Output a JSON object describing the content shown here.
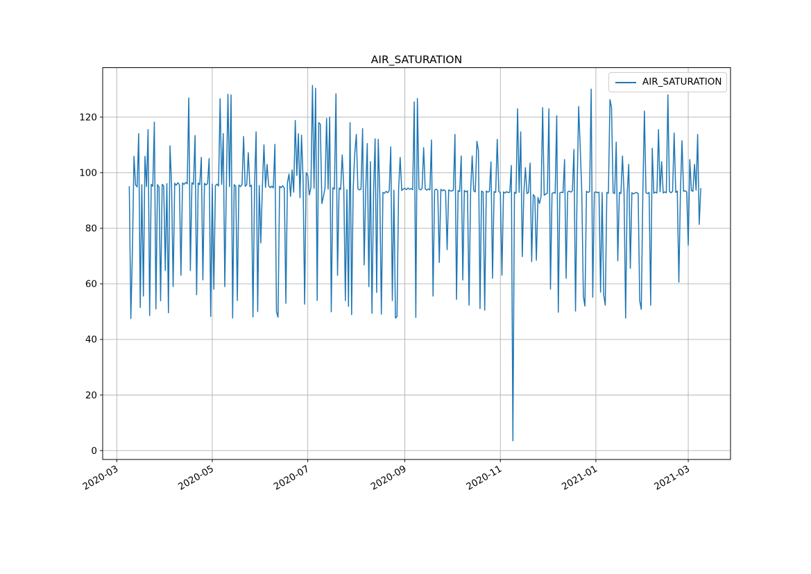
{
  "figure": {
    "title": "AIR_SATURATION"
  },
  "legend": {
    "label": "AIR_SATURATION",
    "position": "upper right"
  },
  "colors": {
    "line": "#1f77b4",
    "grid": "#b0b0b0",
    "spine": "#000000",
    "text": "#000000",
    "legend_border": "#cccccc",
    "background": "#ffffff"
  },
  "chart_data": {
    "type": "line",
    "title": "AIR_SATURATION",
    "xlabel": "",
    "ylabel": "",
    "grid": true,
    "legend_position": "upper right",
    "xlim": [
      "2020-02-21",
      "2021-03-28"
    ],
    "ylim": [
      -3.2,
      137.8
    ],
    "y_ticks": [
      0,
      20,
      40,
      60,
      80,
      100,
      120
    ],
    "x_ticks": [
      {
        "date": "2020-03-01",
        "label": "2020-03"
      },
      {
        "date": "2020-05-01",
        "label": "2020-05"
      },
      {
        "date": "2020-07-01",
        "label": "2020-07"
      },
      {
        "date": "2020-09-01",
        "label": "2020-09"
      },
      {
        "date": "2020-11-01",
        "label": "2020-11"
      },
      {
        "date": "2021-01-01",
        "label": "2021-01"
      },
      {
        "date": "2021-03-01",
        "label": "2021-03"
      }
    ],
    "series": [
      {
        "name": "AIR_SATURATION",
        "start_date": "2020-03-09",
        "end_date": "2021-03-09",
        "freq": "daily",
        "values": [
          95.0,
          47.5,
          72.0,
          105.9,
          95.6,
          94.9,
          114.1,
          51.5,
          95.7,
          55.6,
          105.9,
          95.0,
          115.5,
          48.6,
          95.8,
          95.1,
          118.2,
          51.0,
          95.7,
          94.9,
          53.9,
          95.8,
          95.2,
          64.8,
          96.1,
          49.6,
          109.7,
          95.6,
          59.0,
          96.2,
          95.5,
          96.4,
          95.7,
          63.1,
          96.3,
          95.8,
          96.5,
          96.0,
          126.9,
          64.8,
          96.4,
          95.8,
          113.4,
          56.1,
          96.3,
          95.7,
          105.5,
          61.4,
          96.2,
          95.6,
          96.1,
          105.1,
          48.3,
          95.9,
          58.1,
          95.3,
          95.9,
          95.2,
          126.6,
          95.8,
          114.1,
          59.0,
          95.3,
          128.2,
          95.0,
          128.0,
          47.7,
          95.7,
          95.1,
          54.0,
          95.6,
          95.0,
          95.7,
          113.0,
          95.1,
          95.6,
          107.2,
          95.0,
          95.5,
          48.1,
          95.1,
          114.7,
          50.0,
          95.4,
          74.7,
          94.9,
          110.0,
          94.7,
          103.0,
          95.3,
          94.6,
          95.2,
          94.5,
          110.2,
          50.0,
          48.0,
          95.1,
          94.6,
          95.3,
          94.5,
          53.0,
          96.5,
          99.5,
          91.5,
          101.0,
          93.0,
          118.8,
          99.0,
          114.0,
          91.0,
          113.5,
          97.5,
          52.7,
          100.0,
          99.0,
          92.0,
          94.6,
          131.4,
          94.4,
          130.4,
          54.0,
          118.0,
          117.5,
          88.9,
          91.5,
          94.5,
          119.5,
          94.1,
          120.0,
          49.9,
          94.6,
          94.1,
          128.4,
          63.1,
          94.5,
          94.0,
          106.4,
          94.4,
          54.0,
          93.9,
          51.9,
          118.0,
          48.9,
          94.4,
          107.0,
          113.8,
          94.2,
          93.8,
          94.1,
          115.9,
          66.8,
          93.9,
          110.5,
          59.0,
          104.0,
          49.4,
          92.8,
          112.2,
          56.9,
          112.0,
          92.5,
          49.1,
          92.9,
          92.6,
          93.3,
          92.8,
          93.5,
          109.3,
          54.0,
          93.7,
          47.7,
          48.2,
          93.9,
          105.5,
          93.6,
          94.1,
          94.4,
          93.9,
          94.5,
          94.0,
          94.3,
          93.9,
          125.5,
          47.9,
          126.7,
          94.2,
          93.8,
          94.3,
          109.0,
          94.1,
          93.7,
          94.2,
          93.8,
          111.8,
          55.6,
          93.7,
          94.1,
          93.6,
          67.7,
          94.0,
          93.5,
          93.9,
          93.4,
          72.3,
          93.8,
          93.5,
          93.4,
          93.7,
          113.8,
          54.4,
          93.6,
          93.2,
          106.0,
          61.4,
          93.6,
          93.1,
          93.5,
          52.3,
          93.2,
          106.0,
          93.5,
          93.1,
          111.3,
          108.0,
          51.1,
          93.4,
          93.0,
          50.5,
          93.4,
          93.0,
          93.3,
          103.9,
          62.0,
          93.2,
          92.9,
          112.0,
          93.2,
          92.8,
          63.1,
          93.1,
          92.7,
          93.2,
          92.8,
          93.0,
          102.6,
          3.5,
          93.0,
          92.6,
          123.0,
          92.9,
          114.7,
          69.8,
          92.7,
          101.8,
          92.5,
          92.9,
          103.5,
          68.0,
          92.1,
          91.4,
          68.5,
          91.1,
          88.9,
          91.5,
          123.4,
          91.9,
          92.3,
          92.6,
          123.0,
          58.1,
          92.5,
          92.9,
          92.6,
          120.5,
          49.8,
          92.7,
          93.0,
          92.8,
          104.7,
          62.0,
          93.1,
          93.4,
          93.0,
          93.5,
          108.4,
          50.2,
          93.2,
          123.8,
          109.0,
          93.1,
          55.6,
          52.0,
          93.3,
          92.9,
          93.2,
          130.1,
          55.2,
          92.9,
          93.1,
          92.8,
          93.0,
          57.0,
          92.9,
          56.0,
          52.3,
          92.9,
          92.6,
          126.3,
          123.4,
          92.8,
          92.5,
          111.0,
          68.3,
          92.9,
          92.5,
          106.0,
          92.8,
          47.7,
          92.6,
          103.0,
          65.6,
          92.8,
          92.4,
          92.7,
          92.9,
          92.5,
          54.0,
          50.8,
          92.7,
          122.2,
          92.8,
          92.5,
          92.9,
          52.3,
          108.8,
          92.6,
          93.0,
          92.7,
          115.5,
          93.1,
          104.0,
          92.7,
          93.1,
          92.8,
          128.0,
          93.2,
          92.8,
          93.3,
          114.3,
          92.9,
          93.4,
          60.6,
          93.0,
          111.5,
          93.3,
          93.5,
          93.1,
          73.9,
          104.7,
          93.6,
          93.3,
          103.0,
          93.7,
          113.8,
          81.4,
          94.3
        ]
      }
    ]
  }
}
